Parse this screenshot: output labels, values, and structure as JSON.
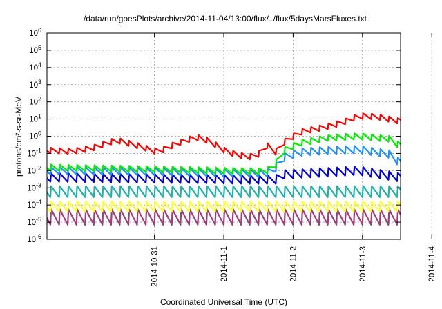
{
  "chart_data": {
    "type": "line",
    "title": "/data/run/goesPlots/archive/2014-11-04/13:00/flux/../flux/5daysMarsFluxes.txt",
    "xlabel": "Coordinated Universal Time (UTC)",
    "ylabel": "protons/cm²-s-sr-MeV",
    "y_scale": "log",
    "ylim": [
      1e-06,
      1000000.0
    ],
    "xlim": [
      -1.55,
      3.55
    ],
    "x_origin_date": "2014-10-31",
    "x_ticks": [
      {
        "x": 0,
        "label": "2014-10-31"
      },
      {
        "x": 1,
        "label": "2014-11-1"
      },
      {
        "x": 2,
        "label": "2014-11-2"
      },
      {
        "x": 3,
        "label": "2014-11-3"
      },
      {
        "x": 4,
        "label": "2014-11-4"
      }
    ],
    "y_ticks": [
      {
        "exp": -6,
        "base": "10",
        "sup": "-6"
      },
      {
        "exp": -5,
        "base": "10",
        "sup": "-5"
      },
      {
        "exp": -4,
        "base": "10",
        "sup": "-4"
      },
      {
        "exp": -3,
        "base": "10",
        "sup": "-3"
      },
      {
        "exp": -2,
        "base": "10",
        "sup": "-2"
      },
      {
        "exp": -1,
        "base": "10",
        "sup": "-1"
      },
      {
        "exp": 0,
        "base": "10",
        "sup": "0"
      },
      {
        "exp": 1,
        "base": "10",
        "sup": "1"
      },
      {
        "exp": 2,
        "base": "10",
        "sup": "2"
      },
      {
        "exp": 3,
        "base": "10",
        "sup": "3"
      },
      {
        "exp": 4,
        "base": "10",
        "sup": "4"
      },
      {
        "exp": 5,
        "base": "10",
        "sup": "5"
      },
      {
        "exp": 6,
        "base": "10",
        "sup": "6"
      }
    ],
    "grid": true,
    "legend": "none",
    "sawtooth_period_days": 0.125,
    "series": [
      {
        "color": "#ff0000",
        "style": "sawtooth",
        "amp_log": 0.16,
        "points": [
          [
            -1.5,
            0.15
          ],
          [
            -1.2,
            0.13
          ],
          [
            -0.9,
            0.2
          ],
          [
            -0.55,
            0.6
          ],
          [
            -0.2,
            0.25
          ],
          [
            0.05,
            0.12
          ],
          [
            0.3,
            0.35
          ],
          [
            0.6,
            0.9
          ],
          [
            0.8,
            0.5
          ],
          [
            1.05,
            0.12
          ],
          [
            1.35,
            0.06
          ],
          [
            1.5,
            0.09
          ],
          [
            1.62,
            0.3
          ],
          [
            1.75,
            0.12
          ],
          [
            1.9,
            0.6
          ],
          [
            2.15,
            2
          ],
          [
            2.4,
            3
          ],
          [
            2.7,
            6
          ],
          [
            2.95,
            15
          ],
          [
            3.2,
            14
          ],
          [
            3.5,
            8
          ]
        ]
      },
      {
        "color": "#00ee00",
        "style": "sawtooth",
        "amp_log": 0.18,
        "points": [
          [
            -1.5,
            0.015
          ],
          [
            0.0,
            0.012
          ],
          [
            1.5,
            0.009
          ],
          [
            1.72,
            0.012
          ],
          [
            1.82,
            0.12
          ],
          [
            2.1,
            0.4
          ],
          [
            2.5,
            0.8
          ],
          [
            2.95,
            1.0
          ],
          [
            3.4,
            0.7
          ],
          [
            3.55,
            0.25
          ]
        ]
      },
      {
        "color": "#1e90ff",
        "style": "sawtooth",
        "amp_log": 0.22,
        "points": [
          [
            -1.5,
            0.01
          ],
          [
            0.0,
            0.009
          ],
          [
            1.5,
            0.007
          ],
          [
            1.72,
            0.008
          ],
          [
            1.82,
            0.05
          ],
          [
            2.1,
            0.12
          ],
          [
            2.5,
            0.15
          ],
          [
            2.95,
            0.17
          ],
          [
            3.4,
            0.09
          ],
          [
            3.55,
            0.025
          ]
        ]
      },
      {
        "color": "#0000dd",
        "style": "sawtooth",
        "amp_log": 0.25,
        "points": [
          [
            -1.5,
            0.004
          ],
          [
            1.5,
            0.003
          ],
          [
            1.75,
            0.003
          ],
          [
            1.85,
            0.006
          ],
          [
            2.95,
            0.01
          ],
          [
            3.55,
            0.004
          ]
        ]
      },
      {
        "color": "#20b2aa",
        "style": "sawtooth",
        "amp_log": 0.32,
        "points": [
          [
            -1.5,
            0.0006
          ],
          [
            3.55,
            0.0006
          ]
        ]
      },
      {
        "color": "#ffff33",
        "style": "sawtooth",
        "amp_log": 0.3,
        "points": [
          [
            -1.5,
            8e-05
          ],
          [
            3.55,
            8e-05
          ]
        ]
      },
      {
        "color": "#9e3d79",
        "style": "sawtooth",
        "amp_log": 0.45,
        "points": [
          [
            -1.5,
            2e-05
          ],
          [
            3.55,
            2e-05
          ]
        ]
      }
    ]
  }
}
